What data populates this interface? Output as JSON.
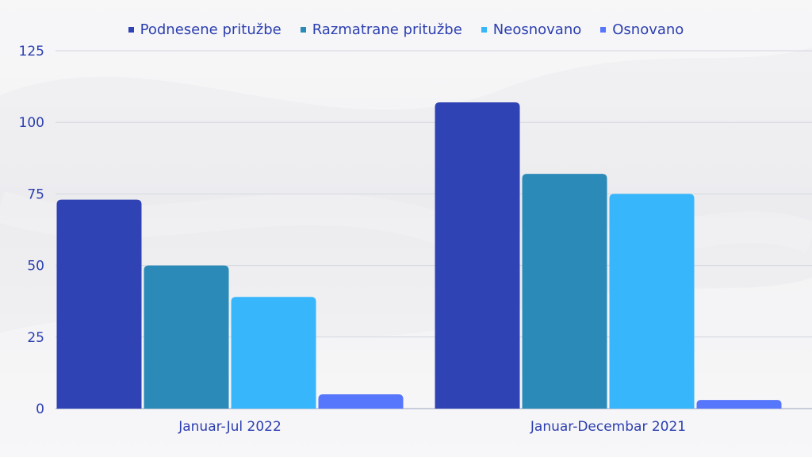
{
  "chart_data": {
    "type": "bar",
    "categories": [
      "Januar-Jul 2022",
      "Januar-Decembar 2021"
    ],
    "series": [
      {
        "name": "Podnesene pritužbe",
        "values": [
          73,
          107
        ],
        "color": "#2f43b4"
      },
      {
        "name": "Razmatrane pritužbe",
        "values": [
          50,
          82
        ],
        "color": "#2b8ab8"
      },
      {
        "name": "Neosnovano",
        "values": [
          39,
          75
        ],
        "color": "#38b6fc"
      },
      {
        "name": "Osnovano",
        "values": [
          5,
          3
        ],
        "color": "#5676fb"
      }
    ],
    "yticks": [
      0,
      25,
      50,
      75,
      100,
      125
    ],
    "ylim": [
      0,
      125
    ],
    "grid": true,
    "legend": "top-center",
    "title": "",
    "xlabel": "",
    "ylabel": ""
  }
}
